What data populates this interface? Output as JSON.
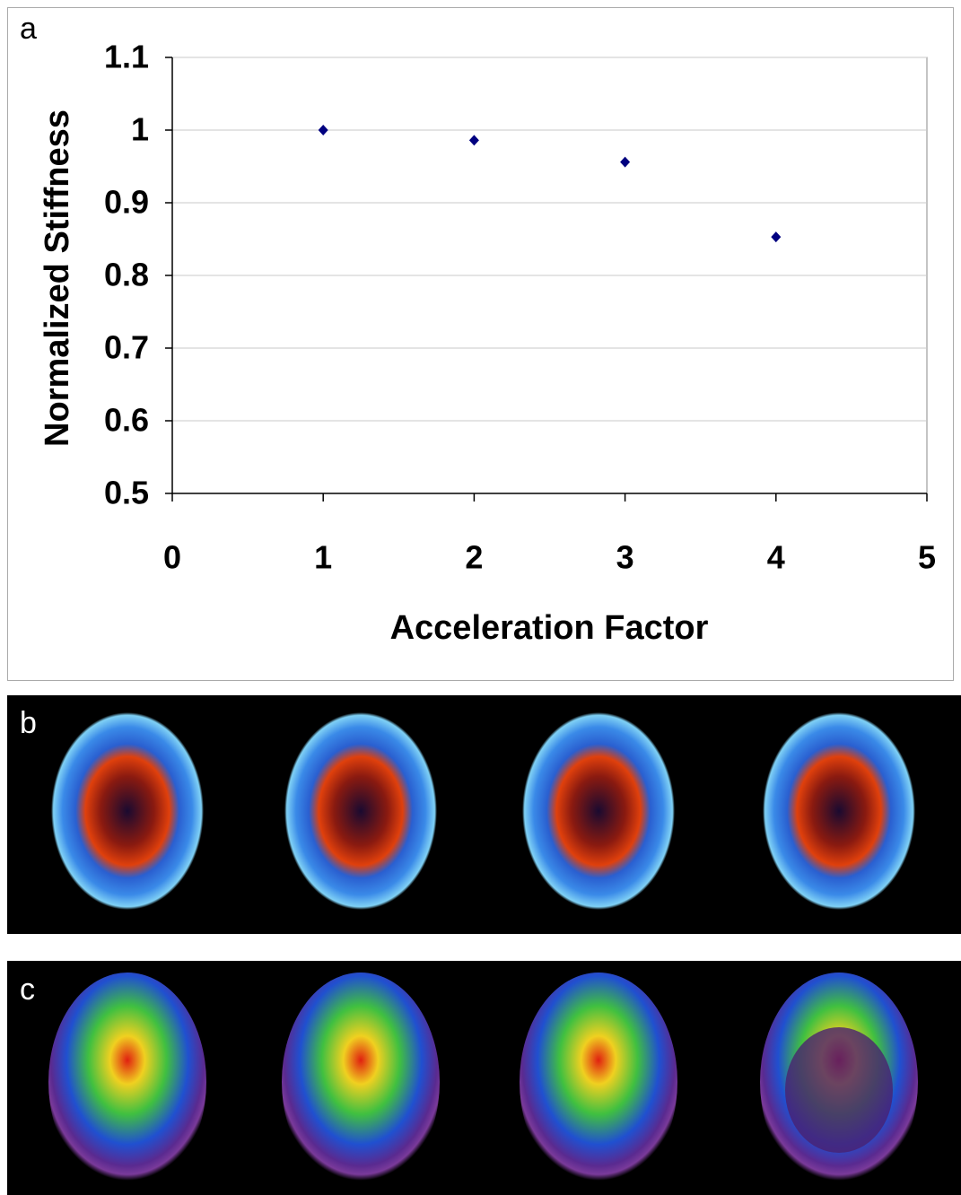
{
  "chart_data": {
    "type": "scatter",
    "panel_label": "a",
    "x_label": "Acceleration Factor",
    "y_label": "Normalized Stiffness",
    "x": [
      1,
      2,
      3,
      4
    ],
    "values": [
      1.0,
      0.986,
      0.956,
      0.853
    ],
    "color": "#000080",
    "xlim": [
      0,
      5
    ],
    "xticks": [
      0,
      1,
      2,
      3,
      4,
      5
    ],
    "ylim": [
      0.5,
      1.1
    ],
    "yticks": [
      0.5,
      0.6,
      0.7,
      0.8,
      0.9,
      1,
      1.1
    ],
    "grid": true
  },
  "panels": [
    {
      "label": "b"
    },
    {
      "label": "c"
    }
  ]
}
